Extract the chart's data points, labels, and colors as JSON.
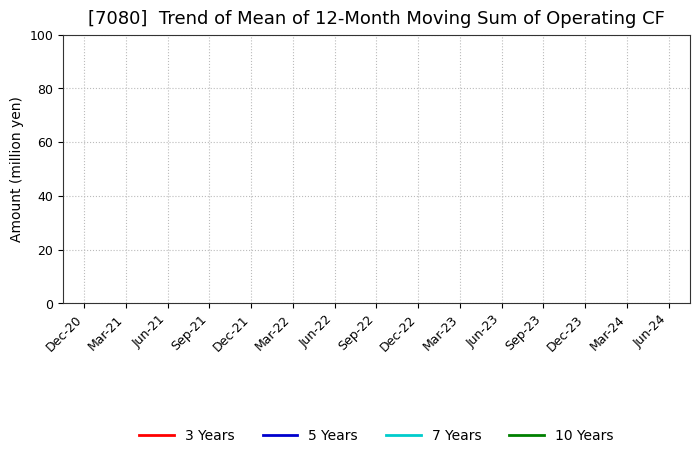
{
  "title": "[7080]  Trend of Mean of 12-Month Moving Sum of Operating CF",
  "ylabel": "Amount (million yen)",
  "ylim": [
    0,
    100
  ],
  "yticks": [
    0,
    20,
    40,
    60,
    80,
    100
  ],
  "x_labels": [
    "Dec-20",
    "Mar-21",
    "Jun-21",
    "Sep-21",
    "Dec-21",
    "Mar-22",
    "Jun-22",
    "Sep-22",
    "Dec-22",
    "Mar-23",
    "Jun-23",
    "Sep-23",
    "Dec-23",
    "Mar-24",
    "Jun-24"
  ],
  "legend_entries": [
    {
      "label": "3 Years",
      "color": "#ff0000"
    },
    {
      "label": "5 Years",
      "color": "#0000cd"
    },
    {
      "label": "7 Years",
      "color": "#00cccc"
    },
    {
      "label": "10 Years",
      "color": "#008000"
    }
  ],
  "grid_color": "#bbbbbb",
  "background_color": "#ffffff",
  "title_fontsize": 13,
  "axis_fontsize": 10,
  "tick_fontsize": 9,
  "legend_fontsize": 10
}
